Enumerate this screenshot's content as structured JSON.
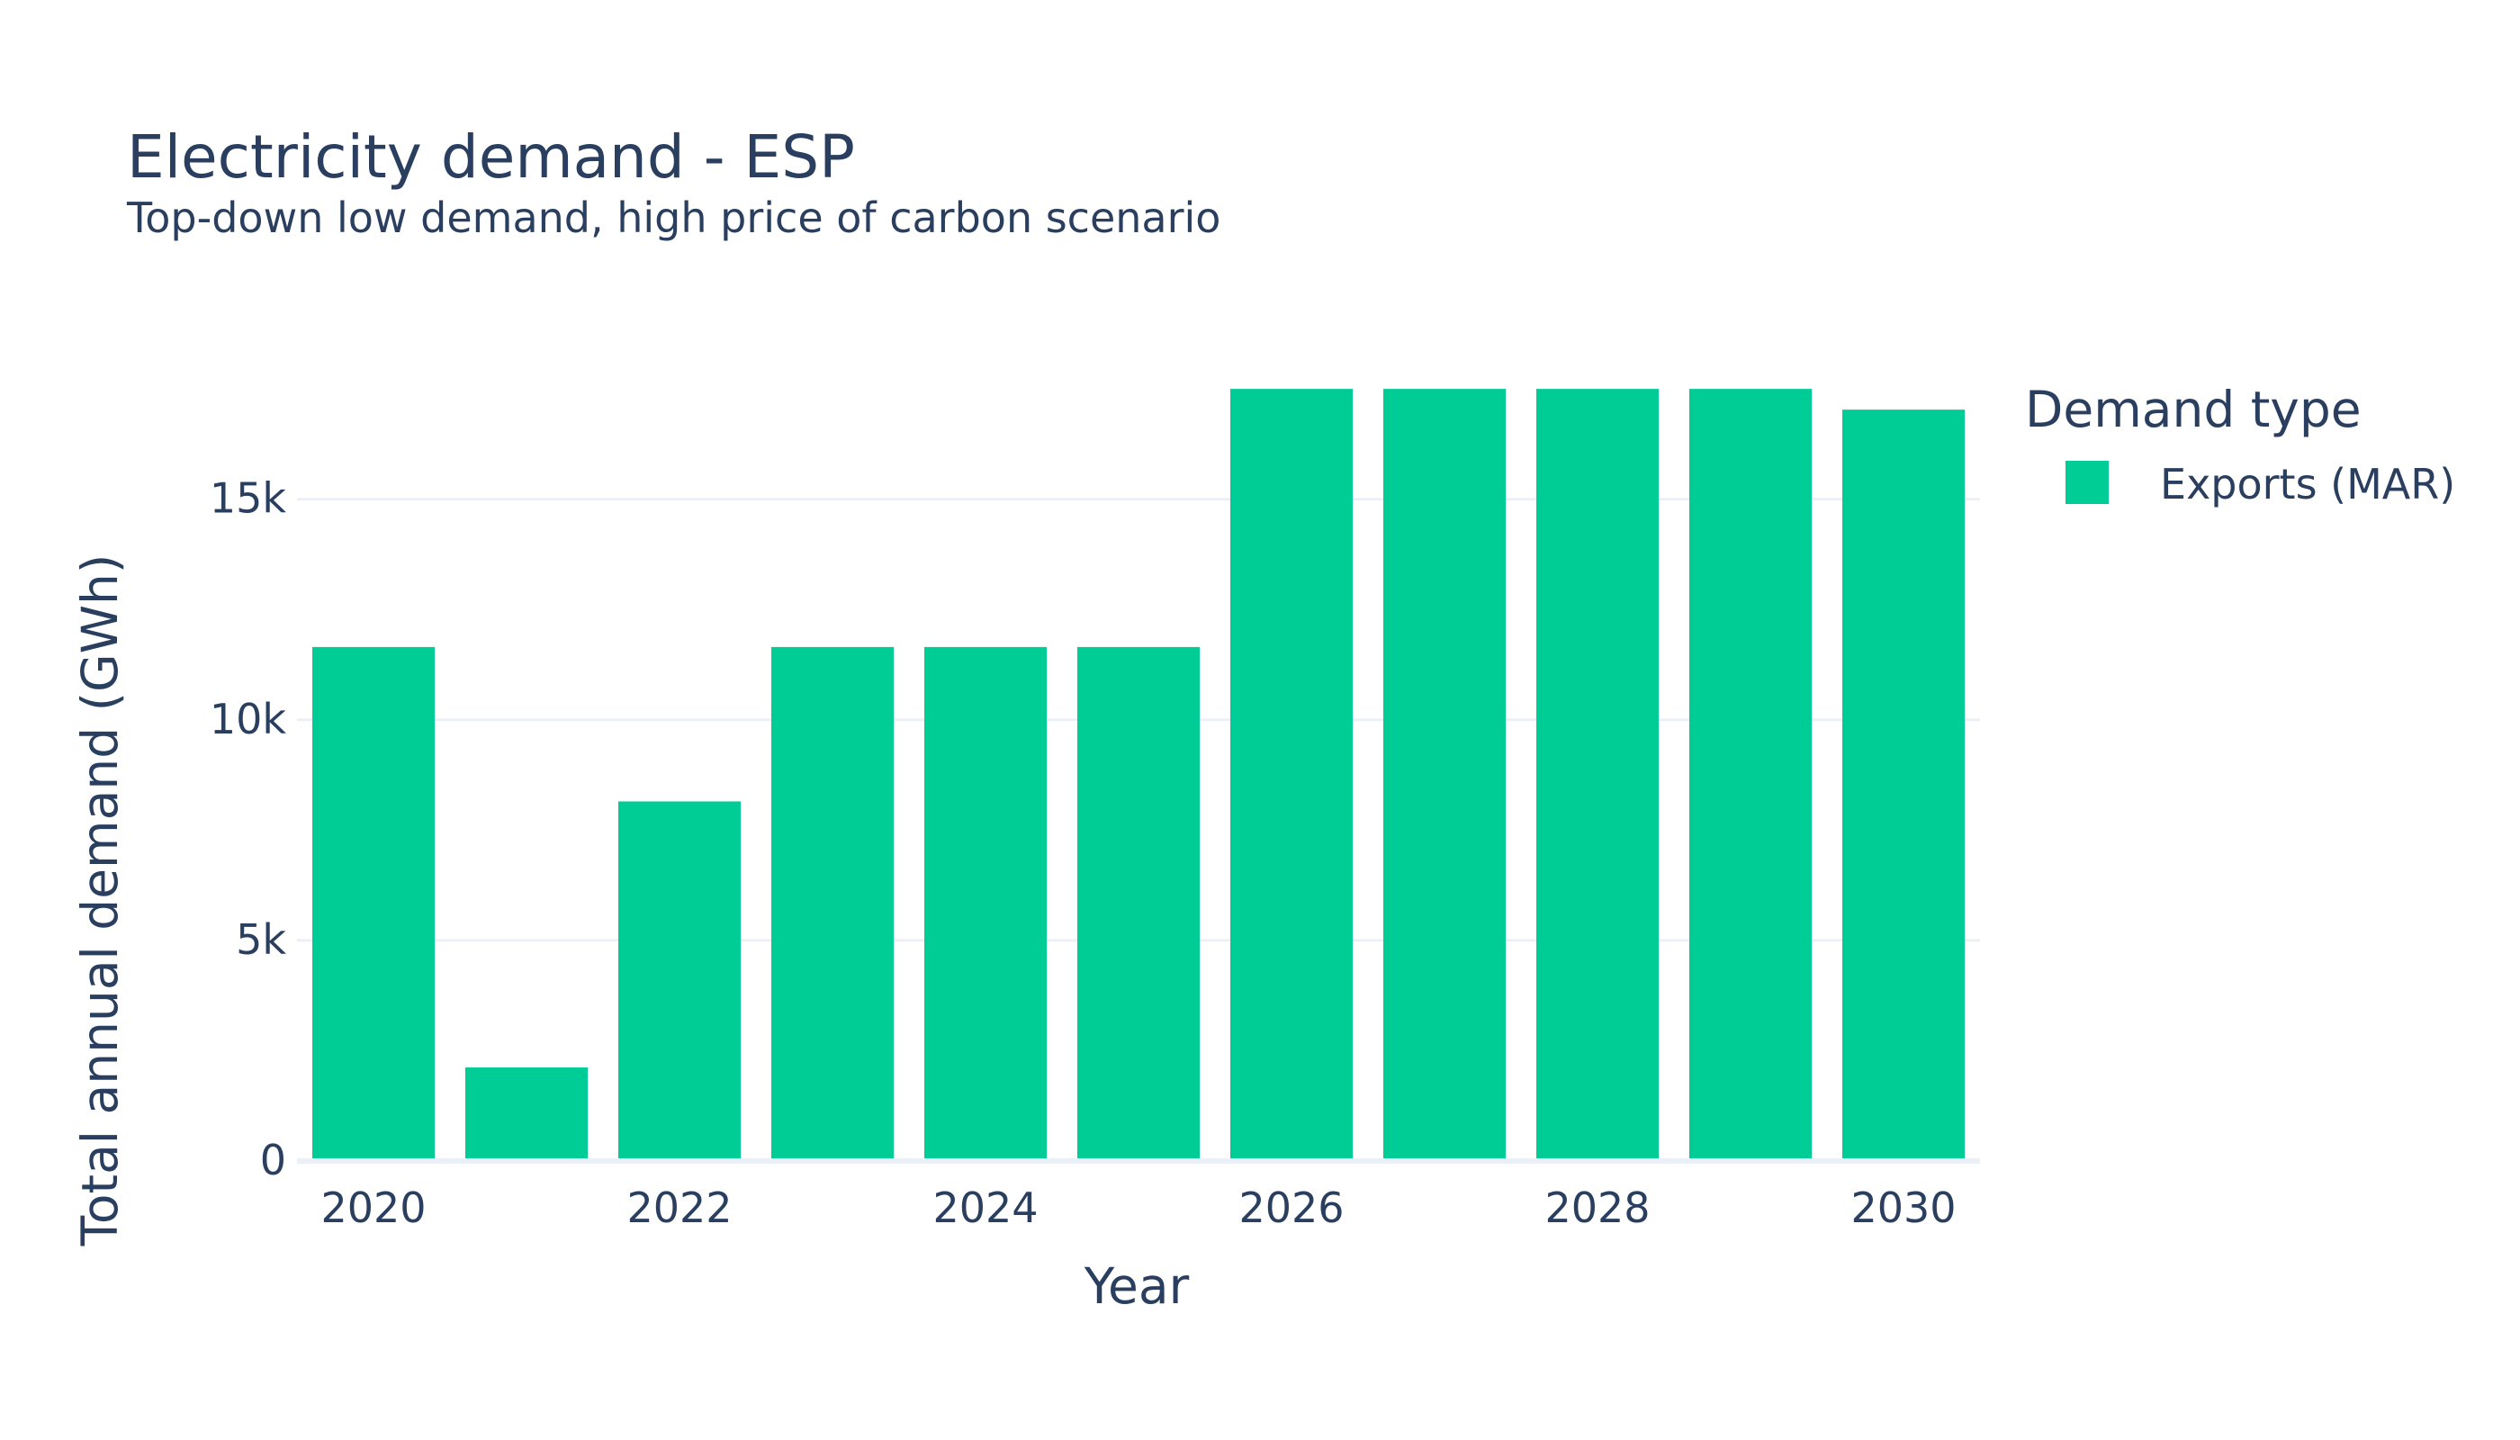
{
  "chart_data": {
    "type": "bar",
    "title": "Electricity demand - ESP",
    "subtitle": "Top-down low demand, high price of carbon scenario",
    "xlabel": "Year",
    "ylabel": "Total annual demand (GWh)",
    "categories": [
      2020,
      2021,
      2022,
      2023,
      2024,
      2025,
      2026,
      2027,
      2028,
      2029,
      2030
    ],
    "x_tick_labels": [
      "2020",
      "2022",
      "2024",
      "2026",
      "2028",
      "2030"
    ],
    "y_ticks": [
      0,
      5000,
      10000,
      15000
    ],
    "y_tick_labels": [
      "0",
      "5k",
      "10k",
      "15k"
    ],
    "ylim": [
      0,
      18400
    ],
    "grid": true,
    "legend_position": "right",
    "legend": {
      "title": "Demand type"
    },
    "series": [
      {
        "name": "Exports (MAR)",
        "color": "#00cc96",
        "values": [
          11650,
          2120,
          8150,
          11650,
          11650,
          11650,
          17500,
          17500,
          17500,
          17500,
          17030
        ]
      }
    ]
  }
}
